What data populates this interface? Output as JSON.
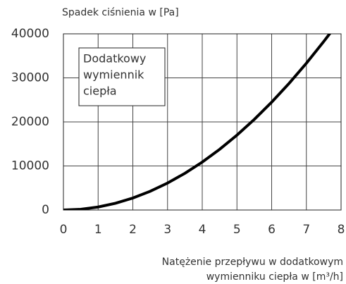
{
  "chart_data": {
    "type": "line",
    "ylabel": "Spadek ciśnienia w [Pa]",
    "xlabel": [
      "Natężenie przepływu w dodatkowym",
      "wymienniku ciepła w [m³/h]"
    ],
    "annotation": [
      "Dodatkowy",
      "wymiennik",
      "ciepła"
    ],
    "x": [
      0,
      0.5,
      1,
      1.5,
      2,
      2.5,
      3,
      3.5,
      4,
      4.5,
      5,
      5.5,
      6,
      6.5,
      7,
      7.5,
      7.67
    ],
    "series": [
      {
        "color": "#000000",
        "values": [
          0,
          170,
          680,
          1530,
          2720,
          4250,
          6120,
          8330,
          10880,
          13770,
          17000,
          20570,
          24480,
          28730,
          33320,
          38250,
          40000
        ]
      }
    ],
    "xlim": [
      0,
      8
    ],
    "xticks": [
      0,
      1,
      2,
      3,
      4,
      5,
      6,
      7,
      8
    ],
    "ylim": [
      0,
      40000
    ],
    "yticks": [
      0,
      10000,
      20000,
      30000,
      40000
    ],
    "grid": true
  }
}
